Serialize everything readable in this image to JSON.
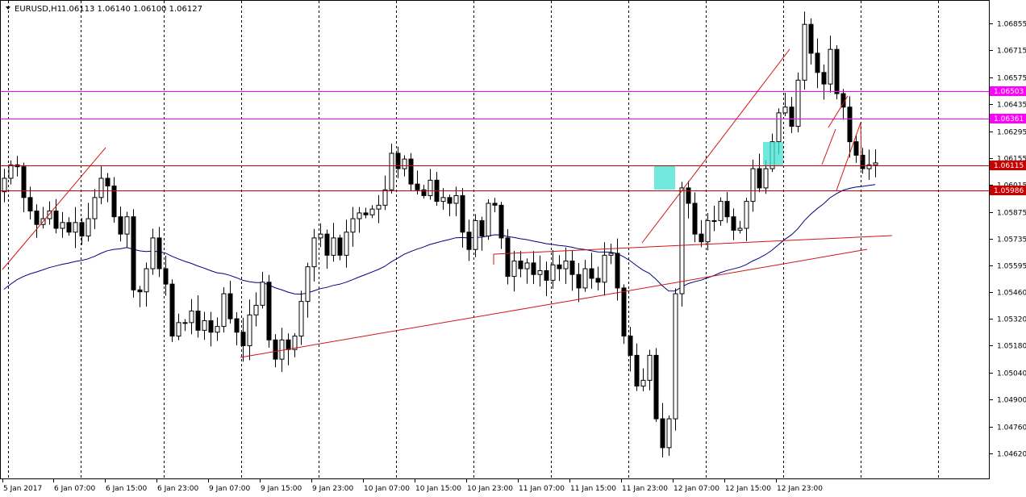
{
  "window": {
    "symbol": "EURUSD,H1",
    "ohlc": "1.06113 1.06140 1.06100 1.06127"
  },
  "colors": {
    "background": "#ffffff",
    "grid": "#000000",
    "candle_bull": "#ffffff",
    "candle_bear": "#000000",
    "moving_average": "#000080",
    "trend_line": "#d21414",
    "level_magenta": "#ff00ff",
    "level_red": "#c80000",
    "highlight_box": "#40e0d0"
  },
  "chart_data": {
    "type": "candlestick",
    "title": "",
    "y_ticks": [
      "1.06855",
      "1.06715",
      "1.06575",
      "1.06435",
      "1.06295",
      "1.06155",
      "1.06015",
      "1.05875",
      "1.05735",
      "1.05595",
      "1.05460",
      "1.05320",
      "1.05180",
      "1.05040",
      "1.04900",
      "1.04760",
      "1.04620"
    ],
    "x_ticks": [
      "5 Jan 2017",
      "6 Jan 07:00",
      "6 Jan 15:00",
      "6 Jan 23:00",
      "9 Jan 07:00",
      "9 Jan 15:00",
      "9 Jan 23:00",
      "10 Jan 07:00",
      "10 Jan 15:00",
      "10 Jan 23:00",
      "11 Jan 07:00",
      "11 Jan 15:00",
      "11 Jan 23:00",
      "12 Jan 07:00",
      "12 Jan 15:00",
      "12 Jan 23:00"
    ],
    "ylim": [
      1.0455,
      1.0693
    ],
    "price_labels": [
      {
        "value": 1.06503,
        "text": "1.06503",
        "color": "#ff00ff"
      },
      {
        "value": 1.06361,
        "text": "1.06361",
        "color": "#ff00ff"
      },
      {
        "value": 1.06115,
        "text": "1.06115",
        "color": "#c80000"
      },
      {
        "value": 1.05986,
        "text": "1.05986",
        "color": "#c80000"
      }
    ],
    "closes": [
      1.0605,
      1.0612,
      1.0611,
      1.0595,
      1.0588,
      1.0581,
      1.0584,
      1.0588,
      1.0579,
      1.0582,
      1.0577,
      1.0582,
      1.0575,
      1.0584,
      1.0595,
      1.0605,
      1.0601,
      1.0585,
      1.0576,
      1.0585,
      1.0547,
      1.0546,
      1.0558,
      1.0574,
      1.0558,
      1.055,
      1.0523,
      1.053,
      1.053,
      1.0536,
      1.0526,
      1.0531,
      1.0525,
      1.0528,
      1.0545,
      1.0532,
      1.0525,
      1.0518,
      1.0534,
      1.0539,
      1.0551,
      1.0521,
      1.0511,
      1.0521,
      1.0516,
      1.0523,
      1.0541,
      1.0559,
      1.0574,
      1.0576,
      1.0565,
      1.0574,
      1.0565,
      1.0577,
      1.0584,
      1.0587,
      1.0586,
      1.0589,
      1.0591,
      1.0599,
      1.0618,
      1.061,
      1.0615,
      1.0602,
      1.0599,
      1.0596,
      1.0604,
      1.0593,
      1.0595,
      1.0592,
      1.0596,
      1.0577,
      1.0568,
      1.0583,
      1.0575,
      1.0592,
      1.0591,
      1.0574,
      1.0554,
      1.0562,
      1.0558,
      1.0561,
      1.0555,
      1.0557,
      1.0552,
      1.056,
      1.0558,
      1.0562,
      1.0555,
      1.0548,
      1.0558,
      1.0553,
      1.0551,
      1.0565,
      1.0566,
      1.0548,
      1.0523,
      1.0513,
      1.0497,
      1.05,
      1.0513,
      1.048,
      1.0465,
      1.048,
      1.0545,
      1.06,
      1.0592,
      1.0576,
      1.0572,
      1.0583,
      1.0583,
      1.0593,
      1.0585,
      1.0578,
      1.0579,
      1.0593,
      1.061,
      1.06,
      1.061,
      1.0624,
      1.0639,
      1.0642,
      1.0632,
      1.0656,
      1.0685,
      1.067,
      1.066,
      1.0654,
      1.0672,
      1.0649,
      1.0642,
      1.0624,
      1.0617,
      1.061,
      1.0612,
      1.0613
    ]
  }
}
